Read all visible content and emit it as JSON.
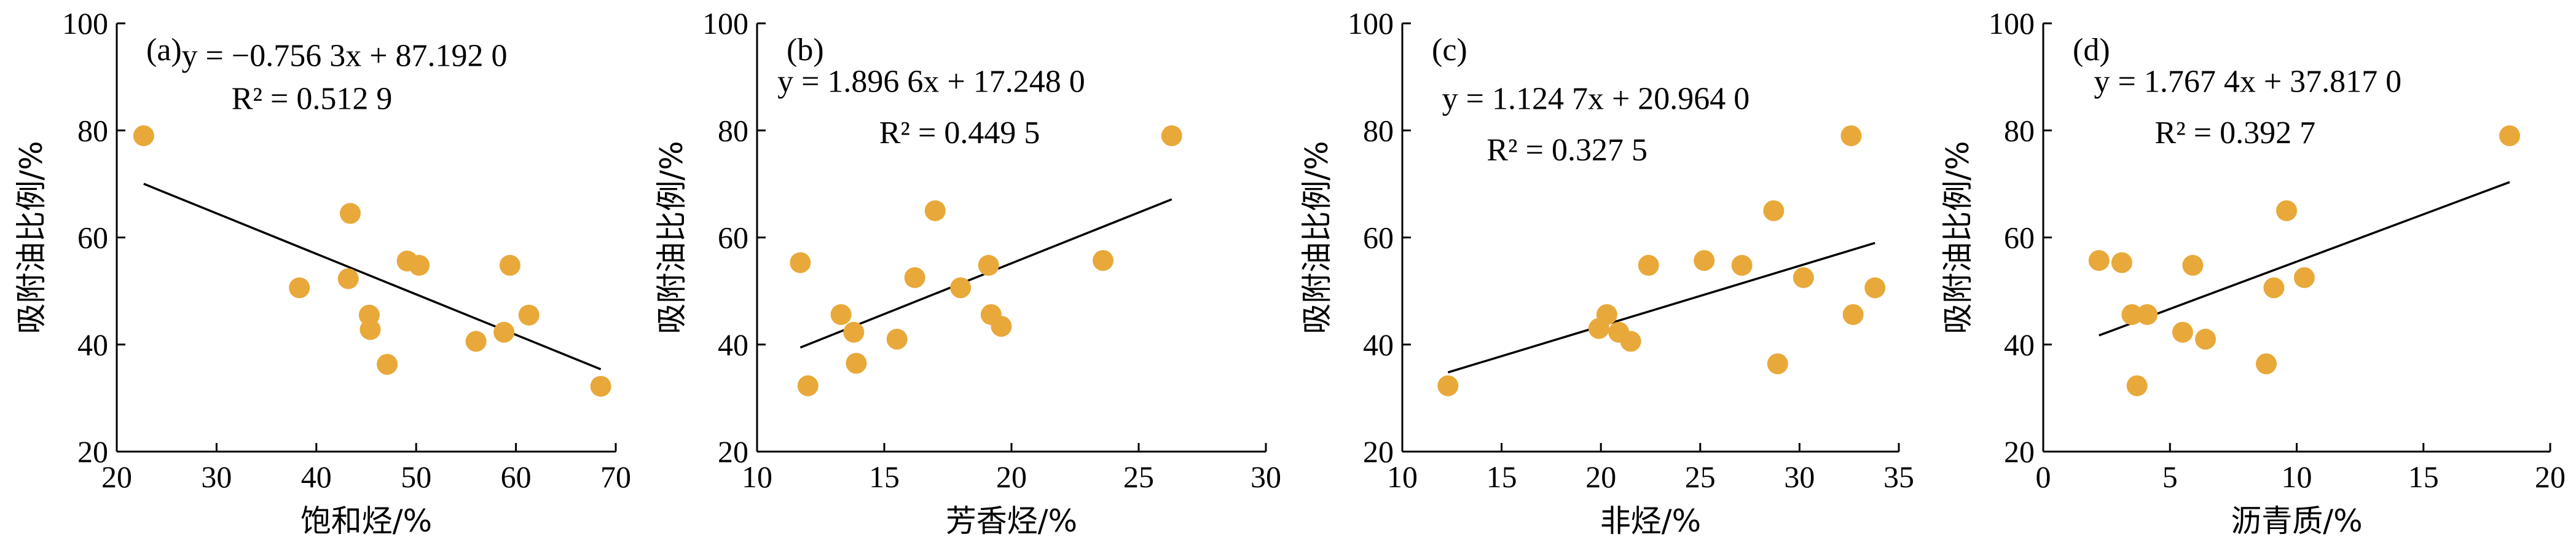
{
  "chart_data": [
    {
      "type": "scatter",
      "panel_label": "(a)",
      "xlabel": "饱和烃/%",
      "ylabel": "吸附油比例/%",
      "xlim": [
        20,
        70
      ],
      "ylim": [
        20,
        100
      ],
      "xticks": [
        "20",
        "30",
        "40",
        "50",
        "60",
        "70"
      ],
      "yticks": [
        "20",
        "40",
        "60",
        "80",
        "100"
      ],
      "equation": "y = −0.756 3x + 87.192 0",
      "r2": "R² = 0.512 9",
      "slope": -0.7563,
      "intercept": 87.192,
      "fit_x": [
        22.7,
        68.5
      ],
      "marker_color": "#E8A93A",
      "points": [
        {
          "x": 22.7,
          "y": 79
        },
        {
          "x": 38.3,
          "y": 50.6
        },
        {
          "x": 43.2,
          "y": 52.3
        },
        {
          "x": 43.4,
          "y": 64.5
        },
        {
          "x": 45.3,
          "y": 45.5
        },
        {
          "x": 45.4,
          "y": 42.8
        },
        {
          "x": 47.1,
          "y": 36.3
        },
        {
          "x": 49.1,
          "y": 55.6
        },
        {
          "x": 50.3,
          "y": 54.8
        },
        {
          "x": 56.0,
          "y": 40.6
        },
        {
          "x": 58.8,
          "y": 42.3
        },
        {
          "x": 59.4,
          "y": 54.8
        },
        {
          "x": 61.3,
          "y": 45.5
        },
        {
          "x": 68.5,
          "y": 32.2
        }
      ]
    },
    {
      "type": "scatter",
      "panel_label": "(b)",
      "xlabel": "芳香烃/%",
      "ylabel": "吸附油比例/%",
      "xlim": [
        10,
        30
      ],
      "ylim": [
        20,
        100
      ],
      "xticks": [
        "10",
        "15",
        "20",
        "25",
        "30"
      ],
      "yticks": [
        "20",
        "40",
        "60",
        "80",
        "100"
      ],
      "equation": "y = 1.896 6x + 17.248 0",
      "r2": "R² = 0.449 5",
      "slope": 1.8966,
      "intercept": 17.248,
      "fit_x": [
        11.7,
        26.3
      ],
      "marker_color": "#E8A93A",
      "points": [
        {
          "x": 11.7,
          "y": 55.3
        },
        {
          "x": 12.0,
          "y": 32.3
        },
        {
          "x": 13.3,
          "y": 45.6
        },
        {
          "x": 13.8,
          "y": 42.3
        },
        {
          "x": 13.9,
          "y": 36.5
        },
        {
          "x": 15.5,
          "y": 41.0
        },
        {
          "x": 16.2,
          "y": 52.5
        },
        {
          "x": 17.0,
          "y": 65.0
        },
        {
          "x": 18.0,
          "y": 50.6
        },
        {
          "x": 19.1,
          "y": 54.8
        },
        {
          "x": 19.2,
          "y": 45.6
        },
        {
          "x": 19.6,
          "y": 43.4
        },
        {
          "x": 23.6,
          "y": 55.7
        },
        {
          "x": 26.3,
          "y": 79.0
        }
      ]
    },
    {
      "type": "scatter",
      "panel_label": "(c)",
      "xlabel": "非烃/%",
      "ylabel": "吸附油比例/%",
      "xlim": [
        10,
        35
      ],
      "ylim": [
        20,
        100
      ],
      "xticks": [
        "10",
        "15",
        "20",
        "25",
        "30",
        "35"
      ],
      "yticks": [
        "20",
        "40",
        "60",
        "80",
        "100"
      ],
      "equation": "y = 1.124 7x + 20.964 0",
      "r2": "R² = 0.327 5",
      "slope": 1.1247,
      "intercept": 20.964,
      "fit_x": [
        12.3,
        33.8
      ],
      "marker_color": "#E8A93A",
      "points": [
        {
          "x": 12.3,
          "y": 32.3
        },
        {
          "x": 19.9,
          "y": 43.0
        },
        {
          "x": 20.3,
          "y": 45.6
        },
        {
          "x": 20.9,
          "y": 42.3
        },
        {
          "x": 21.5,
          "y": 40.6
        },
        {
          "x": 22.4,
          "y": 54.8
        },
        {
          "x": 25.2,
          "y": 55.7
        },
        {
          "x": 27.1,
          "y": 54.8
        },
        {
          "x": 28.7,
          "y": 65.0
        },
        {
          "x": 28.9,
          "y": 36.4
        },
        {
          "x": 30.2,
          "y": 52.5
        },
        {
          "x": 32.6,
          "y": 79.0
        },
        {
          "x": 32.7,
          "y": 45.6
        },
        {
          "x": 33.8,
          "y": 50.6
        }
      ]
    },
    {
      "type": "scatter",
      "panel_label": "(d)",
      "xlabel": "沥青质/%",
      "ylabel": "吸附油比例/%",
      "xlim": [
        0,
        20
      ],
      "ylim": [
        20,
        100
      ],
      "xticks": [
        "0",
        "5",
        "10",
        "15",
        "20"
      ],
      "yticks": [
        "20",
        "40",
        "60",
        "80",
        "100"
      ],
      "equation": "y = 1.767 4x + 37.817 0",
      "r2": "R² = 0.392 7",
      "slope": 1.7674,
      "intercept": 37.817,
      "fit_x": [
        2.2,
        18.4
      ],
      "marker_color": "#E8A93A",
      "points": [
        {
          "x": 2.2,
          "y": 55.7
        },
        {
          "x": 3.1,
          "y": 55.3
        },
        {
          "x": 3.5,
          "y": 45.6
        },
        {
          "x": 3.7,
          "y": 32.3
        },
        {
          "x": 4.1,
          "y": 45.6
        },
        {
          "x": 5.5,
          "y": 42.3
        },
        {
          "x": 5.9,
          "y": 54.8
        },
        {
          "x": 6.4,
          "y": 41.0
        },
        {
          "x": 8.8,
          "y": 36.4
        },
        {
          "x": 9.1,
          "y": 50.6
        },
        {
          "x": 9.6,
          "y": 65.0
        },
        {
          "x": 10.3,
          "y": 52.5
        },
        {
          "x": 18.4,
          "y": 79.0
        }
      ]
    }
  ]
}
